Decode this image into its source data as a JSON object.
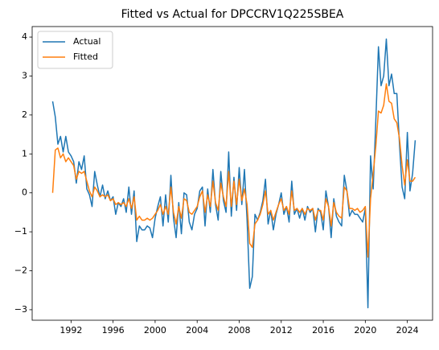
{
  "chart_data": {
    "type": "line",
    "title": "Fitted vs Actual for DPCCRV1Q225SBEA",
    "x": [
      1990.25,
      1990.5,
      1990.75,
      1991,
      1991.25,
      1991.5,
      1991.75,
      1992,
      1992.25,
      1992.5,
      1992.75,
      1993,
      1993.25,
      1993.5,
      1993.75,
      1994,
      1994.25,
      1994.5,
      1994.75,
      1995,
      1995.25,
      1995.5,
      1995.75,
      1996,
      1996.25,
      1996.5,
      1996.75,
      1997,
      1997.25,
      1997.5,
      1997.75,
      1998,
      1998.25,
      1998.5,
      1998.75,
      1999,
      1999.25,
      1999.5,
      1999.75,
      2000,
      2000.25,
      2000.5,
      2000.75,
      2001,
      2001.25,
      2001.5,
      2001.75,
      2002,
      2002.25,
      2002.5,
      2002.75,
      2003,
      2003.25,
      2003.5,
      2003.75,
      2004,
      2004.25,
      2004.5,
      2004.75,
      2005,
      2005.25,
      2005.5,
      2005.75,
      2006,
      2006.25,
      2006.5,
      2006.75,
      2007,
      2007.25,
      2007.5,
      2007.75,
      2008,
      2008.25,
      2008.5,
      2008.75,
      2009,
      2009.25,
      2009.5,
      2009.75,
      2010,
      2010.25,
      2010.5,
      2010.75,
      2011,
      2011.25,
      2011.5,
      2011.75,
      2012,
      2012.25,
      2012.5,
      2012.75,
      2013,
      2013.25,
      2013.5,
      2013.75,
      2014,
      2014.25,
      2014.5,
      2014.75,
      2015,
      2015.25,
      2015.5,
      2015.75,
      2016,
      2016.25,
      2016.5,
      2016.75,
      2017,
      2017.25,
      2017.5,
      2017.75,
      2018,
      2018.25,
      2018.5,
      2018.75,
      2019,
      2019.25,
      2019.5,
      2019.75,
      2020,
      2020.25,
      2020.5,
      2020.75,
      2021,
      2021.25,
      2021.5,
      2021.75,
      2022,
      2022.25,
      2022.5,
      2022.75,
      2023,
      2023.25,
      2023.5,
      2023.75,
      2024,
      2024.25,
      2024.5,
      2024.75
    ],
    "series": [
      {
        "name": "Actual",
        "color": "#1f77b4",
        "values": [
          2.35,
          1.95,
          1.25,
          1.45,
          1.05,
          1.45,
          1.05,
          0.95,
          0.8,
          0.25,
          0.8,
          0.6,
          0.95,
          0.1,
          -0.05,
          -0.35,
          0.55,
          0.2,
          -0.1,
          0.2,
          -0.15,
          0.05,
          -0.2,
          -0.1,
          -0.55,
          -0.25,
          -0.35,
          -0.15,
          -0.5,
          0.15,
          -0.55,
          0.05,
          -1.25,
          -0.85,
          -0.95,
          -0.95,
          -0.85,
          -0.9,
          -1.15,
          -0.65,
          -0.35,
          -0.1,
          -0.85,
          -0.05,
          -0.75,
          0.45,
          -0.65,
          -1.15,
          -0.25,
          -1.05,
          0.0,
          -0.05,
          -0.75,
          -0.95,
          -0.55,
          -0.4,
          0.05,
          0.15,
          -0.85,
          0.1,
          -0.5,
          0.6,
          -0.3,
          -0.7,
          0.55,
          -0.2,
          -0.5,
          1.05,
          -0.6,
          0.4,
          -0.45,
          0.65,
          -0.3,
          0.6,
          -0.7,
          -2.45,
          -2.15,
          -0.55,
          -0.7,
          -0.5,
          -0.2,
          0.35,
          -0.8,
          -0.45,
          -0.95,
          -0.55,
          -0.3,
          0.0,
          -0.55,
          -0.35,
          -0.75,
          0.3,
          -0.55,
          -0.4,
          -0.65,
          -0.4,
          -0.7,
          -0.35,
          -0.5,
          -0.4,
          -1.0,
          -0.4,
          -0.5,
          -0.95,
          0.05,
          -0.35,
          -1.15,
          -0.15,
          -0.6,
          -0.75,
          -0.85,
          0.45,
          0.05,
          -0.6,
          -0.45,
          -0.55,
          -0.55,
          -0.65,
          -0.75,
          -0.4,
          -2.95,
          0.95,
          0.1,
          1.85,
          3.75,
          2.75,
          3.0,
          3.95,
          2.75,
          3.05,
          2.55,
          2.55,
          1.25,
          0.15,
          -0.15,
          1.55,
          0.05,
          0.5,
          1.35
        ]
      },
      {
        "name": "Fitted",
        "color": "#ff7f0e",
        "values": [
          0.0,
          1.1,
          1.15,
          0.9,
          1.0,
          0.8,
          0.9,
          0.8,
          0.7,
          0.35,
          0.55,
          0.5,
          0.55,
          0.3,
          0.05,
          -0.1,
          0.15,
          0.05,
          -0.1,
          -0.05,
          -0.1,
          -0.05,
          -0.2,
          -0.15,
          -0.3,
          -0.25,
          -0.3,
          -0.25,
          -0.35,
          -0.15,
          -0.4,
          -0.1,
          -0.7,
          -0.6,
          -0.7,
          -0.7,
          -0.65,
          -0.7,
          -0.65,
          -0.55,
          -0.45,
          -0.3,
          -0.55,
          -0.35,
          -0.55,
          0.15,
          -0.5,
          -0.8,
          -0.35,
          -0.65,
          -0.15,
          -0.2,
          -0.5,
          -0.55,
          -0.45,
          -0.35,
          -0.1,
          0.05,
          -0.5,
          -0.05,
          -0.35,
          0.3,
          -0.25,
          -0.45,
          0.25,
          -0.1,
          -0.35,
          0.55,
          -0.35,
          0.3,
          -0.3,
          0.35,
          -0.2,
          0.1,
          -0.3,
          -1.3,
          -1.4,
          -0.8,
          -0.7,
          -0.55,
          -0.3,
          0.05,
          -0.55,
          -0.45,
          -0.7,
          -0.5,
          -0.3,
          -0.15,
          -0.45,
          -0.35,
          -0.55,
          0.05,
          -0.45,
          -0.4,
          -0.5,
          -0.4,
          -0.55,
          -0.4,
          -0.45,
          -0.4,
          -0.7,
          -0.45,
          -0.45,
          -0.7,
          -0.15,
          -0.35,
          -0.85,
          -0.25,
          -0.5,
          -0.6,
          -0.65,
          0.15,
          0.05,
          -0.4,
          -0.4,
          -0.45,
          -0.4,
          -0.5,
          -0.45,
          -0.35,
          -1.65,
          -0.15,
          0.5,
          1.2,
          2.1,
          2.05,
          2.25,
          2.8,
          2.35,
          2.3,
          1.9,
          1.8,
          1.4,
          0.7,
          0.2,
          0.85,
          0.3,
          0.3,
          0.4
        ]
      }
    ],
    "xlim": [
      1988.3,
      2026.4
    ],
    "xticks": [
      1992,
      1996,
      2000,
      2004,
      2008,
      2012,
      2016,
      2020,
      2024
    ],
    "ylim": [
      -3.27,
      4.27
    ],
    "yticks": [
      {
        "value": -3,
        "label": "−3"
      },
      {
        "value": -2,
        "label": "−2"
      },
      {
        "value": -1,
        "label": "−1"
      },
      0,
      1,
      2,
      3,
      4
    ],
    "legend": "upper left",
    "grid": false
  }
}
